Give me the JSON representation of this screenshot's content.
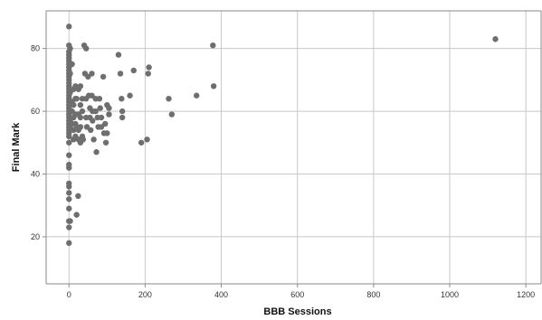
{
  "chart_data": {
    "type": "scatter",
    "title": "",
    "xlabel": "BBB Sessions",
    "ylabel": "Final Mark",
    "xlim": [
      -60,
      1240
    ],
    "ylim": [
      5,
      92
    ],
    "xticks": [
      0,
      200,
      400,
      600,
      800,
      1000,
      1200
    ],
    "yticks": [
      20,
      40,
      60,
      80
    ],
    "grid": true,
    "colors": {
      "point": "#6e6e6e",
      "grid": "#c8c8c8",
      "frame": "#8a8a8a"
    },
    "points": [
      [
        0,
        87
      ],
      [
        0,
        81
      ],
      [
        0,
        79
      ],
      [
        0,
        78
      ],
      [
        0,
        77
      ],
      [
        0,
        76
      ],
      [
        0,
        75
      ],
      [
        0,
        74
      ],
      [
        0,
        73
      ],
      [
        0,
        72
      ],
      [
        0,
        71
      ],
      [
        0,
        70
      ],
      [
        0,
        69
      ],
      [
        0,
        68
      ],
      [
        0,
        67
      ],
      [
        0,
        66
      ],
      [
        0,
        65
      ],
      [
        0,
        64
      ],
      [
        0,
        63
      ],
      [
        0,
        62
      ],
      [
        0,
        61
      ],
      [
        0,
        60
      ],
      [
        0,
        59
      ],
      [
        0,
        58
      ],
      [
        0,
        57
      ],
      [
        0,
        56
      ],
      [
        0,
        55
      ],
      [
        0,
        54
      ],
      [
        0,
        53
      ],
      [
        0,
        52
      ],
      [
        0,
        50
      ],
      [
        0,
        46
      ],
      [
        0,
        43
      ],
      [
        0,
        42
      ],
      [
        0,
        37
      ],
      [
        0,
        36
      ],
      [
        0,
        34
      ],
      [
        0,
        32
      ],
      [
        0,
        29
      ],
      [
        0,
        25
      ],
      [
        0,
        23
      ],
      [
        0,
        18
      ],
      [
        3,
        80
      ],
      [
        3,
        72
      ],
      [
        3,
        66
      ],
      [
        3,
        60
      ],
      [
        3,
        57
      ],
      [
        3,
        55
      ],
      [
        3,
        25
      ],
      [
        8,
        75
      ],
      [
        8,
        63
      ],
      [
        8,
        60
      ],
      [
        8,
        56
      ],
      [
        12,
        67
      ],
      [
        12,
        62
      ],
      [
        12,
        58
      ],
      [
        12,
        54
      ],
      [
        12,
        51
      ],
      [
        17,
        68
      ],
      [
        17,
        64
      ],
      [
        17,
        59
      ],
      [
        17,
        56
      ],
      [
        17,
        52
      ],
      [
        20,
        64
      ],
      [
        20,
        55
      ],
      [
        20,
        27
      ],
      [
        24,
        33
      ],
      [
        25,
        67
      ],
      [
        25,
        59
      ],
      [
        25,
        54
      ],
      [
        25,
        51
      ],
      [
        30,
        68
      ],
      [
        30,
        62
      ],
      [
        30,
        58
      ],
      [
        30,
        55
      ],
      [
        30,
        50
      ],
      [
        35,
        64
      ],
      [
        35,
        60
      ],
      [
        35,
        52
      ],
      [
        37,
        51
      ],
      [
        40,
        81
      ],
      [
        42,
        72
      ],
      [
        45,
        80
      ],
      [
        45,
        64
      ],
      [
        45,
        58
      ],
      [
        47,
        55
      ],
      [
        50,
        71
      ],
      [
        52,
        65
      ],
      [
        55,
        61
      ],
      [
        55,
        58
      ],
      [
        57,
        54
      ],
      [
        60,
        72
      ],
      [
        60,
        65
      ],
      [
        62,
        60
      ],
      [
        62,
        57
      ],
      [
        65,
        51
      ],
      [
        70,
        64
      ],
      [
        70,
        60
      ],
      [
        72,
        47
      ],
      [
        75,
        58
      ],
      [
        77,
        55
      ],
      [
        80,
        64
      ],
      [
        82,
        61
      ],
      [
        85,
        58
      ],
      [
        85,
        55
      ],
      [
        90,
        71
      ],
      [
        92,
        53
      ],
      [
        95,
        56
      ],
      [
        97,
        50
      ],
      [
        100,
        62
      ],
      [
        100,
        53
      ],
      [
        105,
        61
      ],
      [
        105,
        59
      ],
      [
        130,
        78
      ],
      [
        135,
        72
      ],
      [
        138,
        64
      ],
      [
        140,
        58
      ],
      [
        140,
        60
      ],
      [
        160,
        65
      ],
      [
        170,
        73
      ],
      [
        190,
        50
      ],
      [
        205,
        51
      ],
      [
        208,
        72
      ],
      [
        210,
        74
      ],
      [
        262,
        64
      ],
      [
        270,
        59
      ],
      [
        335,
        65
      ],
      [
        378,
        81
      ],
      [
        380,
        68
      ],
      [
        1120,
        83
      ]
    ]
  }
}
